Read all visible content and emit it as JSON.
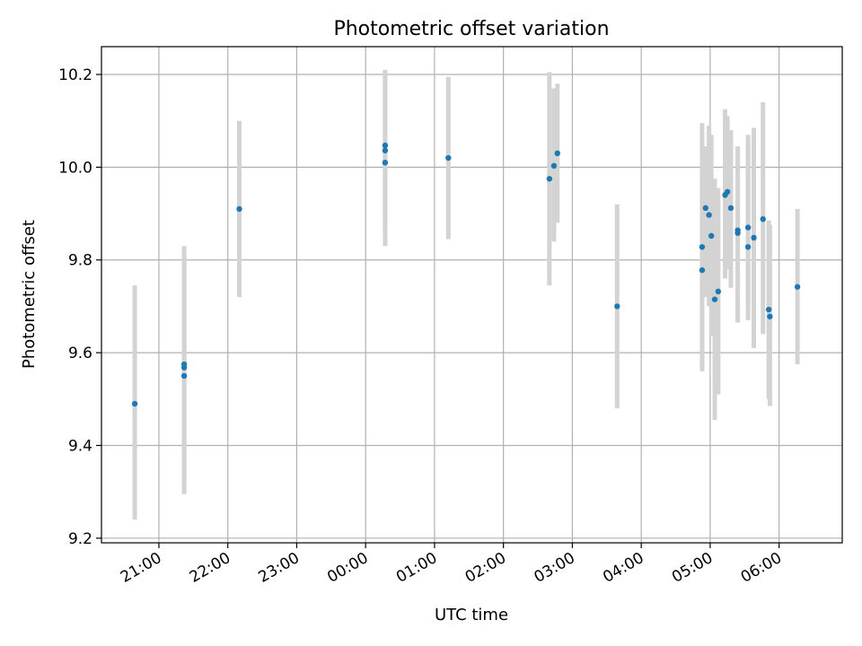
{
  "chart_data": {
    "type": "scatter",
    "title": "Photometric offset variation",
    "xlabel": "UTC time",
    "ylabel": "Photometric offset",
    "x_unit": "UTC time (date of 20:00–24:00 points is the day before the rest)",
    "xlim": [
      "20:10",
      "06:55"
    ],
    "ylim": [
      9.19,
      10.26
    ],
    "x_ticks": [
      "21:00",
      "22:00",
      "23:00",
      "00:00",
      "01:00",
      "02:00",
      "03:00",
      "04:00",
      "05:00",
      "06:00"
    ],
    "y_ticks": [
      "9.2",
      "9.4",
      "9.6",
      "9.8",
      "10.0",
      "10.2"
    ],
    "grid": true,
    "colors": {
      "point": "#1f77b4",
      "errorbar": "#d3d3d3"
    },
    "points": [
      {
        "x": "20:39",
        "y": 9.49,
        "yerr_low": 9.24,
        "yerr_high": 9.745
      },
      {
        "x": "21:22",
        "y": 9.575,
        "yerr_low": 9.32,
        "yerr_high": 9.83
      },
      {
        "x": "21:22",
        "y": 9.568,
        "yerr_low": 9.31,
        "yerr_high": 9.82
      },
      {
        "x": "21:22",
        "y": 9.55,
        "yerr_low": 9.295,
        "yerr_high": 9.805
      },
      {
        "x": "22:10",
        "y": 9.91,
        "yerr_low": 9.72,
        "yerr_high": 10.1
      },
      {
        "x": "00:17",
        "y": 10.047,
        "yerr_low": 9.885,
        "yerr_high": 10.21
      },
      {
        "x": "00:17",
        "y": 10.036,
        "yerr_low": 9.87,
        "yerr_high": 10.2
      },
      {
        "x": "00:17",
        "y": 10.01,
        "yerr_low": 9.83,
        "yerr_high": 10.19
      },
      {
        "x": "01:12",
        "y": 10.02,
        "yerr_low": 9.845,
        "yerr_high": 10.195
      },
      {
        "x": "02:40",
        "y": 9.975,
        "yerr_low": 9.745,
        "yerr_high": 10.205
      },
      {
        "x": "02:44",
        "y": 10.003,
        "yerr_low": 9.84,
        "yerr_high": 10.17
      },
      {
        "x": "02:47",
        "y": 10.03,
        "yerr_low": 9.88,
        "yerr_high": 10.18
      },
      {
        "x": "03:39",
        "y": 9.7,
        "yerr_low": 9.48,
        "yerr_high": 9.92
      },
      {
        "x": "04:53",
        "y": 9.828,
        "yerr_low": 9.56,
        "yerr_high": 10.095
      },
      {
        "x": "04:53",
        "y": 9.778,
        "yerr_low": 9.56,
        "yerr_high": 10.0
      },
      {
        "x": "04:56",
        "y": 9.912,
        "yerr_low": 9.72,
        "yerr_high": 10.045
      },
      {
        "x": "04:59",
        "y": 9.897,
        "yerr_low": 9.7,
        "yerr_high": 10.09
      },
      {
        "x": "05:01",
        "y": 9.852,
        "yerr_low": 9.635,
        "yerr_high": 10.07
      },
      {
        "x": "05:04",
        "y": 9.715,
        "yerr_low": 9.455,
        "yerr_high": 9.975
      },
      {
        "x": "05:07",
        "y": 9.732,
        "yerr_low": 9.51,
        "yerr_high": 9.955
      },
      {
        "x": "05:13",
        "y": 9.94,
        "yerr_low": 9.76,
        "yerr_high": 10.125
      },
      {
        "x": "05:15",
        "y": 9.947,
        "yerr_low": 9.78,
        "yerr_high": 10.11
      },
      {
        "x": "05:18",
        "y": 9.912,
        "yerr_low": 9.74,
        "yerr_high": 10.08
      },
      {
        "x": "05:24",
        "y": 9.864,
        "yerr_low": 9.665,
        "yerr_high": 10.045
      },
      {
        "x": "05:24",
        "y": 9.858,
        "yerr_low": 9.67,
        "yerr_high": 10.04
      },
      {
        "x": "05:33",
        "y": 9.87,
        "yerr_low": 9.67,
        "yerr_high": 10.07
      },
      {
        "x": "05:33",
        "y": 9.828,
        "yerr_low": 9.7,
        "yerr_high": 10.05
      },
      {
        "x": "05:38",
        "y": 9.848,
        "yerr_low": 9.61,
        "yerr_high": 10.085
      },
      {
        "x": "05:46",
        "y": 9.888,
        "yerr_low": 9.64,
        "yerr_high": 10.14
      },
      {
        "x": "05:51",
        "y": 9.693,
        "yerr_low": 9.5,
        "yerr_high": 9.885
      },
      {
        "x": "05:52",
        "y": 9.678,
        "yerr_low": 9.485,
        "yerr_high": 9.875
      },
      {
        "x": "06:16",
        "y": 9.742,
        "yerr_low": 9.575,
        "yerr_high": 9.91
      }
    ]
  }
}
